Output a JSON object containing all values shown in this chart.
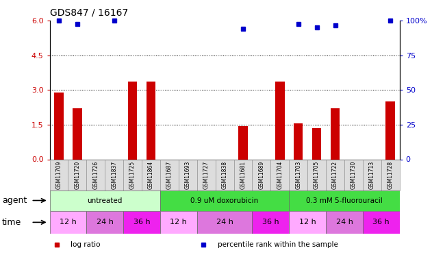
{
  "title": "GDS847 / 16167",
  "samples": [
    "GSM11709",
    "GSM11720",
    "GSM11726",
    "GSM11837",
    "GSM11725",
    "GSM11864",
    "GSM11687",
    "GSM11693",
    "GSM11727",
    "GSM11838",
    "GSM11681",
    "GSM11689",
    "GSM11704",
    "GSM11703",
    "GSM11705",
    "GSM11722",
    "GSM11730",
    "GSM11713",
    "GSM11728"
  ],
  "log_ratio": [
    2.9,
    2.2,
    0,
    0,
    3.35,
    3.35,
    0,
    0,
    0,
    0,
    1.45,
    0,
    3.35,
    1.55,
    1.35,
    2.2,
    0,
    0,
    2.5
  ],
  "percentile_left_scale": [
    6.0,
    5.85,
    0,
    6.0,
    0,
    0,
    0,
    0,
    0,
    0,
    5.65,
    0,
    0,
    5.85,
    5.7,
    5.8,
    0,
    0,
    6.0
  ],
  "bar_color": "#cc0000",
  "dot_color": "#0000cc",
  "ylim_left": [
    0,
    6
  ],
  "ylim_right": [
    0,
    100
  ],
  "yticks_left": [
    0,
    1.5,
    3.0,
    4.5,
    6.0
  ],
  "yticks_right": [
    0,
    25,
    50,
    75,
    100
  ],
  "hlines": [
    1.5,
    3.0,
    4.5
  ],
  "agent_groups": [
    {
      "label": "untreated",
      "start": 0,
      "end": 6,
      "color": "#ccffcc"
    },
    {
      "label": "0.9 uM doxorubicin",
      "start": 6,
      "end": 13,
      "color": "#44dd44"
    },
    {
      "label": "0.3 mM 5-fluorouracil",
      "start": 13,
      "end": 19,
      "color": "#44dd44"
    }
  ],
  "time_groups": [
    {
      "label": "12 h",
      "start": 0,
      "end": 2,
      "color": "#ffaaff"
    },
    {
      "label": "24 h",
      "start": 2,
      "end": 4,
      "color": "#dd77dd"
    },
    {
      "label": "36 h",
      "start": 4,
      "end": 6,
      "color": "#ee22ee"
    },
    {
      "label": "12 h",
      "start": 6,
      "end": 8,
      "color": "#ffaaff"
    },
    {
      "label": "24 h",
      "start": 8,
      "end": 11,
      "color": "#dd77dd"
    },
    {
      "label": "36 h",
      "start": 11,
      "end": 13,
      "color": "#ee22ee"
    },
    {
      "label": "12 h",
      "start": 13,
      "end": 15,
      "color": "#ffaaff"
    },
    {
      "label": "24 h",
      "start": 15,
      "end": 17,
      "color": "#dd77dd"
    },
    {
      "label": "36 h",
      "start": 17,
      "end": 19,
      "color": "#ee22ee"
    }
  ],
  "legend_items": [
    {
      "label": "log ratio",
      "color": "#cc0000"
    },
    {
      "label": "percentile rank within the sample",
      "color": "#0000cc"
    }
  ],
  "tick_color_left": "#cc0000",
  "tick_color_right": "#0000cc",
  "bar_width": 0.5,
  "dot_size": 5
}
